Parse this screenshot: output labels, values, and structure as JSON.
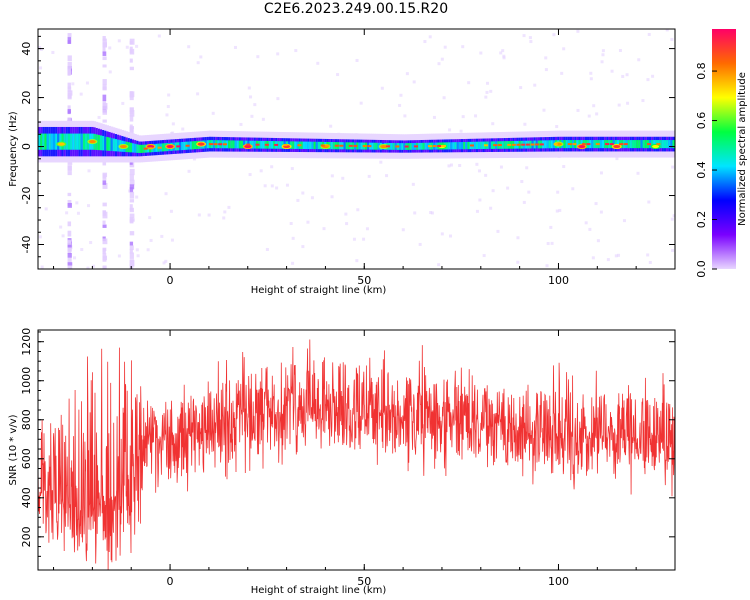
{
  "page_title": "C2E6.2023.249.00.15.R20",
  "chart_data": [
    {
      "type": "heatmap",
      "xlabel": "Height of straight line (km)",
      "ylabel": "Frequency (Hz)",
      "xlim": [
        -34,
        130
      ],
      "ylim": [
        -50,
        48
      ],
      "x_ticks": [
        0,
        50,
        100
      ],
      "y_ticks": [
        -40,
        -20,
        0,
        20,
        40
      ],
      "colorbar": {
        "label": "Normalized spectral amplitude",
        "range": [
          0,
          0.97
        ],
        "ticks": [
          "0.0",
          "0.2",
          "0.4",
          "0.6",
          "0.8"
        ],
        "colors": [
          "#e8d6ff",
          "#7a00ff",
          "#0000ff",
          "#00e5ff",
          "#00ff40",
          "#ffff00",
          "#ff6a00",
          "#ff0066"
        ]
      },
      "band": [
        {
          "x": -34,
          "center": 2,
          "halfwidth": 6
        },
        {
          "x": -20,
          "center": 2,
          "halfwidth": 6
        },
        {
          "x": -8,
          "center": -1,
          "halfwidth": 3
        },
        {
          "x": 10,
          "center": 1,
          "halfwidth": 3
        },
        {
          "x": 60,
          "center": 0,
          "halfwidth": 2.5
        },
        {
          "x": 100,
          "center": 1,
          "halfwidth": 3
        },
        {
          "x": 130,
          "center": 1,
          "halfwidth": 3
        }
      ],
      "peak_bins": [
        {
          "x": -28,
          "f": 1,
          "v": 0.75
        },
        {
          "x": -20,
          "f": 2,
          "v": 0.8
        },
        {
          "x": -12,
          "f": 0,
          "v": 0.8
        },
        {
          "x": -5,
          "f": 0,
          "v": 0.95
        },
        {
          "x": 0,
          "f": 0,
          "v": 0.95
        },
        {
          "x": 8,
          "f": 1,
          "v": 0.9
        },
        {
          "x": 20,
          "f": 0,
          "v": 0.95
        },
        {
          "x": 30,
          "f": 0,
          "v": 0.9
        },
        {
          "x": 40,
          "f": 0,
          "v": 0.8
        },
        {
          "x": 55,
          "f": 0,
          "v": 0.8
        },
        {
          "x": 70,
          "f": 0,
          "v": 0.7
        },
        {
          "x": 100,
          "f": 1,
          "v": 0.8
        },
        {
          "x": 106,
          "f": 0,
          "v": 0.95
        },
        {
          "x": 115,
          "f": 0,
          "v": 0.9
        },
        {
          "x": 125,
          "f": 0,
          "v": 0.7
        }
      ]
    },
    {
      "type": "line",
      "xlabel": "Height of straight line (km)",
      "ylabel": "SNR (10 * v/v)",
      "xlim": [
        -34,
        130
      ],
      "ylim": [
        30,
        1260
      ],
      "x_ticks": [
        0,
        50,
        100
      ],
      "y_ticks": [
        200,
        400,
        600,
        800,
        1000,
        1200
      ],
      "series": [
        {
          "color": "#f03232",
          "envelope": [
            {
              "x": -34,
              "low": 250,
              "mid": 450,
              "high": 750
            },
            {
              "x": -25,
              "low": 80,
              "mid": 350,
              "high": 950
            },
            {
              "x": -15,
              "low": 60,
              "mid": 400,
              "high": 1050
            },
            {
              "x": -10,
              "low": 100,
              "mid": 500,
              "high": 1150
            },
            {
              "x": -6,
              "low": 500,
              "mid": 700,
              "high": 900
            },
            {
              "x": 0,
              "low": 500,
              "mid": 720,
              "high": 900
            },
            {
              "x": 10,
              "low": 520,
              "mid": 760,
              "high": 950
            },
            {
              "x": 20,
              "low": 600,
              "mid": 830,
              "high": 1050
            },
            {
              "x": 30,
              "low": 650,
              "mid": 880,
              "high": 1100
            },
            {
              "x": 45,
              "low": 650,
              "mid": 860,
              "high": 1100
            },
            {
              "x": 60,
              "low": 600,
              "mid": 820,
              "high": 1050
            },
            {
              "x": 80,
              "low": 560,
              "mid": 770,
              "high": 980
            },
            {
              "x": 100,
              "low": 520,
              "mid": 720,
              "high": 950
            },
            {
              "x": 115,
              "low": 500,
              "mid": 700,
              "high": 950
            },
            {
              "x": 130,
              "low": 480,
              "mid": 660,
              "high": 900
            }
          ]
        }
      ]
    }
  ]
}
